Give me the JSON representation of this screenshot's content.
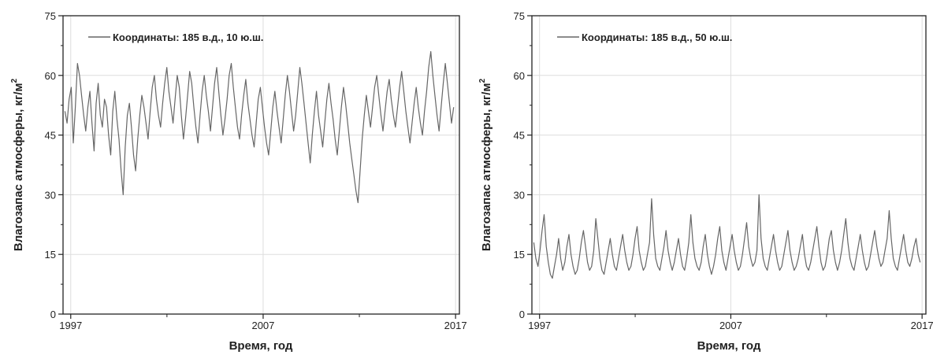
{
  "chart_data": [
    {
      "type": "line",
      "xlabel": "Время, год",
      "ylabel": "Влагозапас атмосферы, кг/м²",
      "ylabel_main": "Влагозапас атмосферы, кг/м",
      "ylabel_sup": "2",
      "xlim": [
        1996.6,
        2017.2
      ],
      "ylim": [
        0,
        75
      ],
      "xticks": [
        "1997",
        "2007",
        "2017"
      ],
      "xtick_values": [
        1997,
        2007,
        2017
      ],
      "yticks": [
        "0",
        "15",
        "30",
        "45",
        "60",
        "75"
      ],
      "ytick_values": [
        0,
        15,
        30,
        45,
        60,
        75
      ],
      "grid": true,
      "legend_position": "top-left",
      "color": "#666666",
      "series": [
        {
          "name": "Координаты: 185 в.д., 10 ю.ш.",
          "x_start": 1996.7,
          "x_end": 2016.9,
          "values": [
            51,
            48,
            54,
            57,
            43,
            52,
            63,
            60,
            55,
            50,
            46,
            52,
            56,
            48,
            41,
            53,
            58,
            50,
            47,
            54,
            52,
            45,
            40,
            51,
            56,
            49,
            44,
            36,
            30,
            42,
            50,
            53,
            47,
            40,
            36,
            44,
            50,
            55,
            52,
            48,
            44,
            51,
            57,
            60,
            54,
            50,
            47,
            53,
            58,
            62,
            56,
            52,
            48,
            54,
            60,
            57,
            50,
            44,
            49,
            55,
            61,
            58,
            52,
            47,
            43,
            50,
            56,
            60,
            55,
            51,
            46,
            52,
            58,
            62,
            56,
            50,
            45,
            49,
            54,
            60,
            63,
            57,
            52,
            47,
            44,
            50,
            55,
            59,
            53,
            49,
            45,
            42,
            48,
            54,
            57,
            52,
            47,
            43,
            40,
            46,
            52,
            56,
            51,
            47,
            43,
            49,
            55,
            60,
            56,
            51,
            46,
            50,
            56,
            62,
            58,
            53,
            48,
            43,
            38,
            45,
            51,
            56,
            50,
            46,
            42,
            48,
            54,
            58,
            53,
            49,
            44,
            40,
            46,
            52,
            57,
            53,
            48,
            43,
            39,
            35,
            31,
            28,
            36,
            44,
            50,
            55,
            51,
            47,
            52,
            57,
            60,
            55,
            50,
            46,
            51,
            56,
            59,
            54,
            50,
            47,
            52,
            57,
            61,
            56,
            51,
            47,
            43,
            48,
            53,
            57,
            52,
            48,
            45,
            51,
            56,
            62,
            66,
            60,
            55,
            50,
            46,
            52,
            58,
            63,
            58,
            53,
            48,
            52
          ]
        },
        {
          "name": "Координаты: 185 в.д., 50 ю.ш.",
          "x_start": 1996.7,
          "x_end": 2016.9,
          "values": [
            18,
            14,
            12,
            16,
            21,
            25,
            17,
            13,
            10,
            9,
            12,
            15,
            19,
            14,
            11,
            13,
            17,
            20,
            15,
            12,
            10,
            11,
            14,
            18,
            21,
            17,
            13,
            11,
            12,
            16,
            24,
            19,
            14,
            11,
            10,
            13,
            16,
            19,
            15,
            12,
            11,
            14,
            17,
            20,
            16,
            13,
            11,
            12,
            15,
            19,
            22,
            16,
            13,
            11,
            12,
            15,
            18,
            29,
            20,
            14,
            12,
            11,
            14,
            17,
            21,
            16,
            13,
            11,
            13,
            16,
            19,
            15,
            12,
            11,
            14,
            18,
            25,
            18,
            14,
            12,
            11,
            13,
            17,
            20,
            15,
            12,
            10,
            12,
            15,
            19,
            22,
            16,
            13,
            11,
            14,
            17,
            20,
            16,
            13,
            11,
            12,
            15,
            19,
            23,
            17,
            14,
            12,
            13,
            16,
            30,
            19,
            14,
            12,
            11,
            14,
            17,
            20,
            16,
            13,
            11,
            12,
            15,
            18,
            21,
            16,
            13,
            11,
            12,
            14,
            17,
            20,
            15,
            12,
            11,
            13,
            16,
            19,
            22,
            17,
            13,
            11,
            12,
            15,
            19,
            21,
            16,
            13,
            11,
            13,
            16,
            20,
            24,
            18,
            14,
            12,
            11,
            14,
            17,
            20,
            16,
            13,
            11,
            12,
            15,
            18,
            21,
            17,
            14,
            12,
            13,
            16,
            19,
            26,
            19,
            14,
            12,
            11,
            14,
            17,
            20,
            16,
            13,
            12,
            14,
            17,
            19,
            15,
            13
          ]
        }
      ]
    }
  ]
}
